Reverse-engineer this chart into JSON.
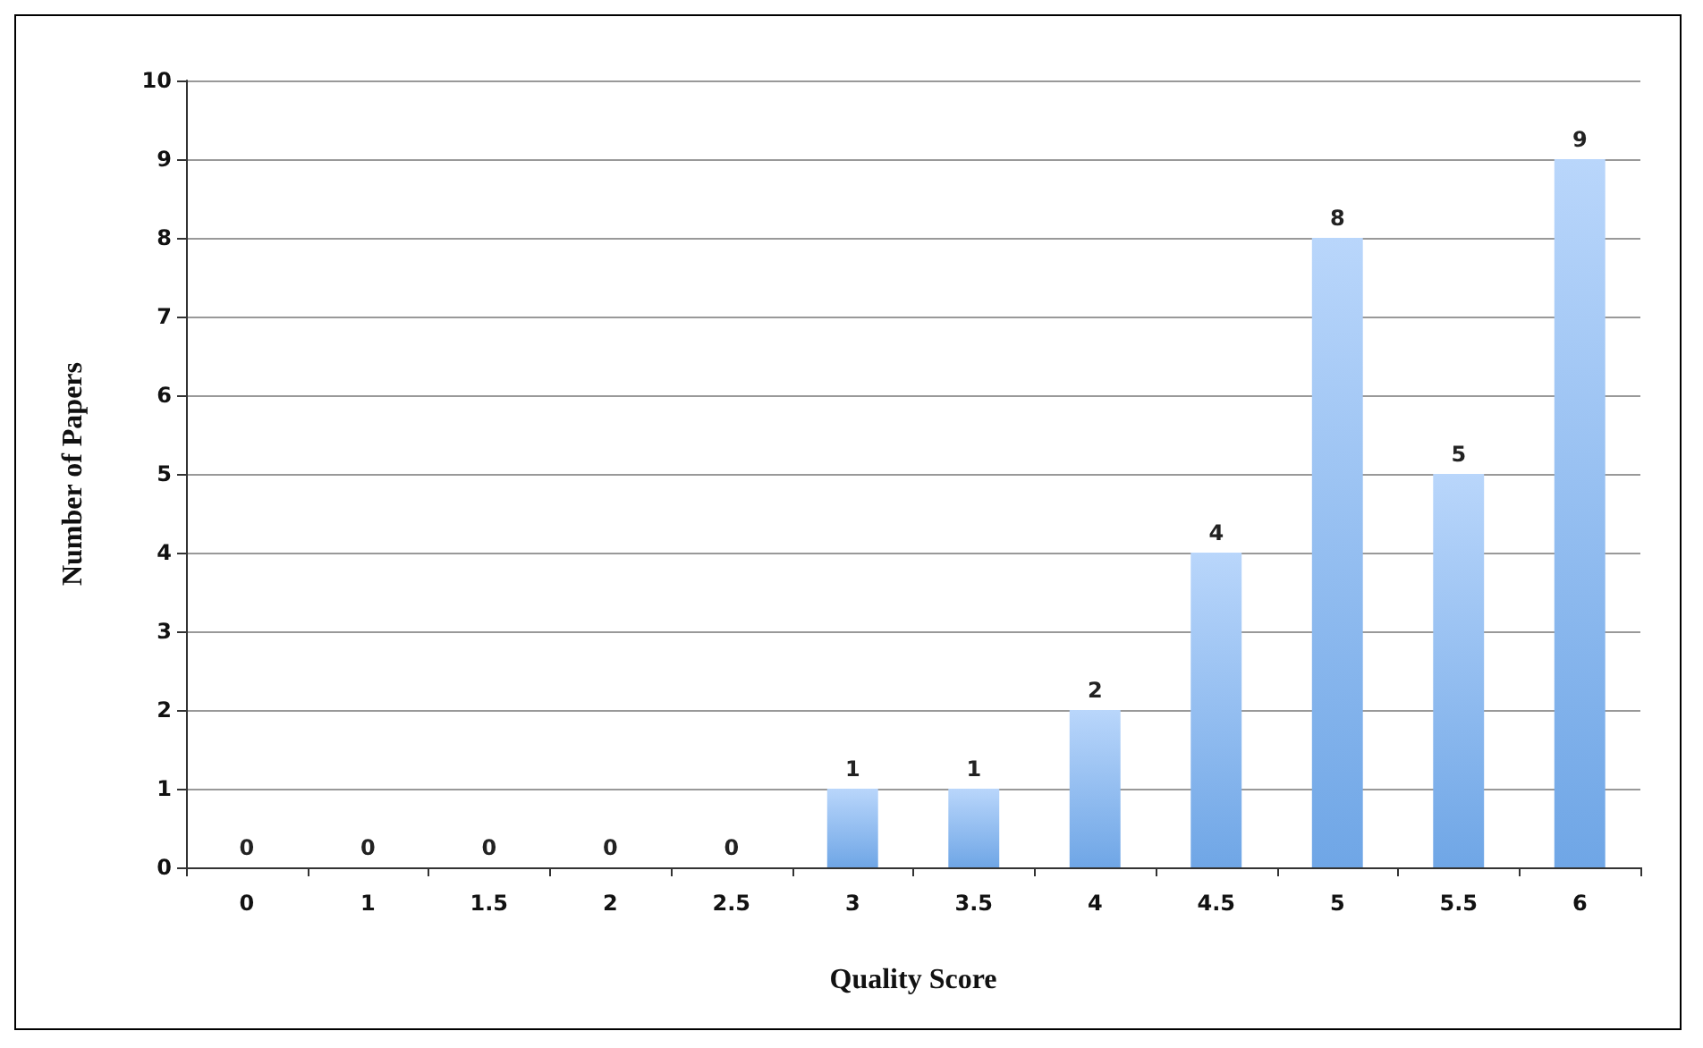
{
  "chart_data": {
    "type": "bar",
    "xlabel": "Quality Score",
    "ylabel": "Number of Papers",
    "categories": [
      "0",
      "1",
      "1.5",
      "2",
      "2.5",
      "3",
      "3.5",
      "4",
      "4.5",
      "5",
      "5.5",
      "6"
    ],
    "values": [
      0,
      0,
      0,
      0,
      0,
      1,
      1,
      2,
      4,
      8,
      5,
      9
    ],
    "color": "#6fa6e6",
    "ylim": [
      0,
      10
    ],
    "yticks": [
      0,
      1,
      2,
      3,
      4,
      5,
      6,
      7,
      8,
      9,
      10
    ],
    "grid": "y",
    "data_labels": true
  }
}
